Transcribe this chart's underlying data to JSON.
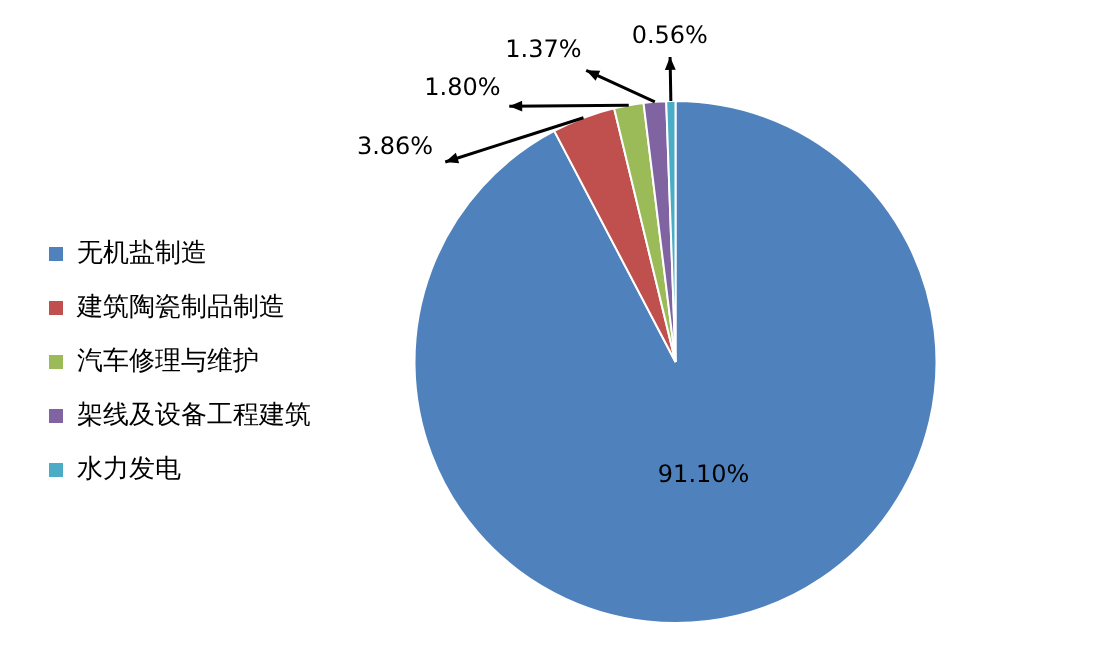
{
  "chart_data": {
    "type": "pie",
    "categories": [
      "无机盐制造",
      "建筑陶瓷制品制造",
      "汽车修理与维护",
      "架线及设备工程建筑",
      "水力发电"
    ],
    "values": [
      91.1,
      3.86,
      1.8,
      1.37,
      0.56
    ],
    "colors": [
      "#4f81bd",
      "#c0504d",
      "#9bbb59",
      "#8064a2",
      "#4bacc6"
    ],
    "value_labels": [
      "91.10%",
      "3.86%",
      "1.80%",
      "1.37%",
      "0.56%"
    ],
    "legend": "left"
  }
}
